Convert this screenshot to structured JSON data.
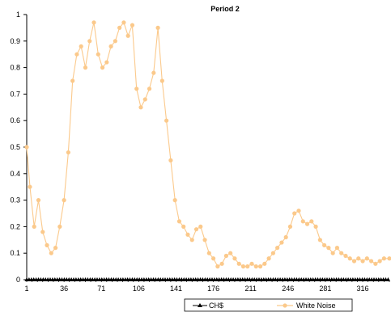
{
  "chart_data": {
    "type": "line",
    "title": "Period 2",
    "xlabel": "",
    "ylabel": "",
    "x_tick_labels": [
      "1",
      "36",
      "71",
      "106",
      "141",
      "176",
      "211",
      "246",
      "281",
      "316"
    ],
    "y_tick_labels": [
      "0",
      "0.1",
      "0.2",
      "0.3",
      "0.4",
      "0.5",
      "0.6",
      "0.7",
      "0.8",
      "0.9",
      "1"
    ],
    "xlim": [
      1,
      341
    ],
    "ylim": [
      0,
      1
    ],
    "grid": false,
    "legend_position": "bottom",
    "series": [
      {
        "name": "CH$",
        "color": "#000000",
        "marker": "triangle",
        "x": [
          1,
          341
        ],
        "y": [
          0,
          0
        ]
      },
      {
        "name": "White Noise",
        "color": "#fbc98b",
        "marker": "circle",
        "x": [
          1,
          4,
          8,
          12,
          16,
          20,
          24,
          28,
          32,
          36,
          40,
          44,
          48,
          52,
          56,
          60,
          64,
          68,
          72,
          76,
          80,
          84,
          88,
          92,
          96,
          100,
          104,
          108,
          112,
          116,
          120,
          124,
          128,
          132,
          136,
          140,
          144,
          148,
          152,
          156,
          160,
          164,
          168,
          172,
          176,
          180,
          184,
          188,
          192,
          196,
          200,
          204,
          208,
          212,
          216,
          220,
          224,
          228,
          232,
          236,
          240,
          244,
          248,
          252,
          256,
          260,
          264,
          268,
          272,
          276,
          280,
          284,
          288,
          292,
          296,
          300,
          304,
          308,
          312,
          316,
          320,
          324,
          328,
          332,
          336,
          341
        ],
        "y": [
          0.5,
          0.35,
          0.2,
          0.3,
          0.18,
          0.13,
          0.1,
          0.12,
          0.2,
          0.3,
          0.48,
          0.75,
          0.85,
          0.88,
          0.8,
          0.9,
          0.97,
          0.85,
          0.8,
          0.82,
          0.88,
          0.9,
          0.95,
          0.97,
          0.92,
          0.96,
          0.72,
          0.65,
          0.68,
          0.72,
          0.78,
          0.95,
          0.75,
          0.6,
          0.45,
          0.3,
          0.22,
          0.2,
          0.17,
          0.15,
          0.19,
          0.2,
          0.15,
          0.1,
          0.08,
          0.05,
          0.06,
          0.09,
          0.1,
          0.08,
          0.06,
          0.05,
          0.05,
          0.06,
          0.05,
          0.05,
          0.06,
          0.08,
          0.1,
          0.12,
          0.14,
          0.16,
          0.2,
          0.25,
          0.26,
          0.22,
          0.21,
          0.22,
          0.2,
          0.15,
          0.13,
          0.12,
          0.1,
          0.12,
          0.1,
          0.09,
          0.08,
          0.07,
          0.08,
          0.07,
          0.08,
          0.07,
          0.06,
          0.07,
          0.08,
          0.08
        ]
      }
    ]
  }
}
